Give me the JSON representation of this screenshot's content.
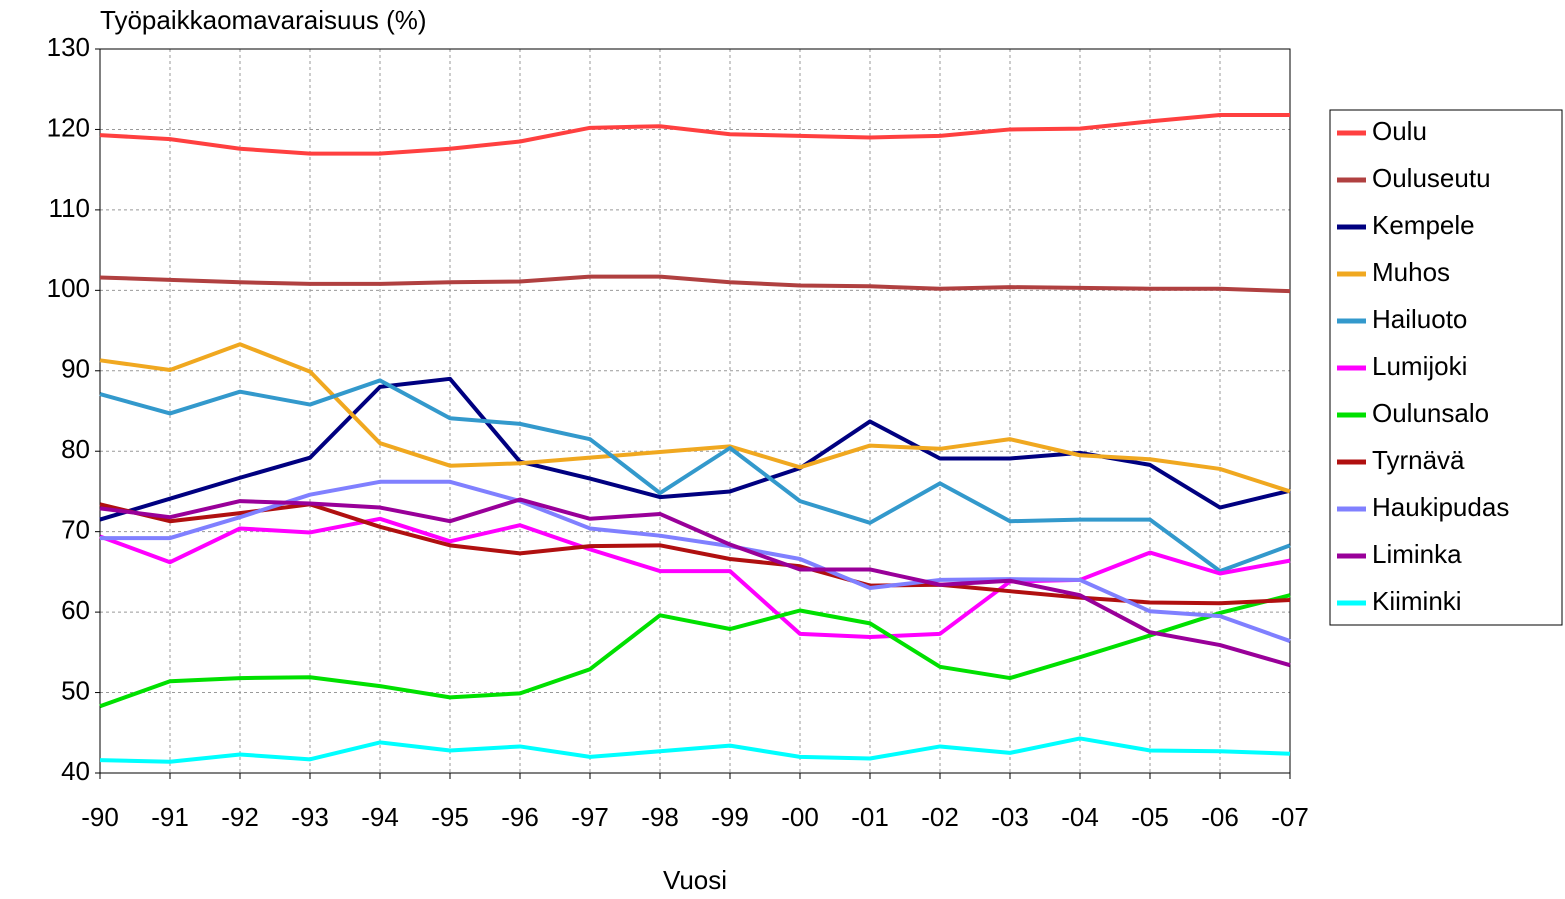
{
  "chart_data": {
    "type": "line",
    "y_axis_label": "Työpaikkaomavaraisuus (%)",
    "x_axis_label": "Vuosi",
    "categories": [
      "-90",
      "-91",
      "-92",
      "-93",
      "-94",
      "-95",
      "-96",
      "-97",
      "-98",
      "-99",
      "-00",
      "-01",
      "-02",
      "-03",
      "-04",
      "-05",
      "-06",
      "-07"
    ],
    "ylim": [
      40,
      130
    ],
    "yticks": [
      40,
      50,
      60,
      70,
      80,
      90,
      100,
      110,
      120,
      130
    ],
    "grid": true,
    "legend": "right",
    "series": [
      {
        "name": "Oulu",
        "color": "#ff4040",
        "values": [
          119.3,
          118.8,
          117.6,
          117.0,
          117.0,
          117.6,
          118.5,
          120.2,
          120.4,
          119.4,
          119.2,
          119.0,
          119.2,
          120.0,
          120.1,
          121.0,
          121.8,
          121.8
        ]
      },
      {
        "name": "Ouluseutu",
        "color": "#b04040",
        "values": [
          101.6,
          101.3,
          101.0,
          100.8,
          100.8,
          101.0,
          101.1,
          101.7,
          101.7,
          101.0,
          100.6,
          100.5,
          100.2,
          100.4,
          100.3,
          100.2,
          100.2,
          99.9
        ]
      },
      {
        "name": "Kempele",
        "color": "#000080",
        "values": [
          71.5,
          74.1,
          76.7,
          79.2,
          88.0,
          89.0,
          78.7,
          76.6,
          74.3,
          75.0,
          77.9,
          83.7,
          79.1,
          79.1,
          79.8,
          78.3,
          73.0,
          75.1
        ]
      },
      {
        "name": "Muhos",
        "color": "#f0a820",
        "values": [
          91.3,
          90.1,
          93.3,
          89.9,
          81.0,
          78.2,
          78.5,
          79.2,
          79.9,
          80.6,
          78.0,
          80.7,
          80.3,
          81.5,
          79.5,
          79.0,
          77.8,
          75.0
        ]
      },
      {
        "name": "Hailuoto",
        "color": "#3399cc",
        "values": [
          87.1,
          84.7,
          87.4,
          85.8,
          88.8,
          84.1,
          83.4,
          81.5,
          74.8,
          80.4,
          73.8,
          71.1,
          76.0,
          71.3,
          71.5,
          71.5,
          65.1,
          68.3
        ]
      },
      {
        "name": "Lumijoki",
        "color": "#ff00ff",
        "values": [
          69.4,
          66.2,
          70.4,
          69.9,
          71.6,
          68.8,
          70.8,
          67.8,
          65.1,
          65.1,
          57.3,
          56.9,
          57.3,
          63.8,
          64.0,
          67.4,
          64.8,
          66.4
        ]
      },
      {
        "name": "Oulunsalo",
        "color": "#00e000",
        "values": [
          48.3,
          51.4,
          51.8,
          51.9,
          50.8,
          49.4,
          49.9,
          52.9,
          59.6,
          57.9,
          60.2,
          58.6,
          53.2,
          51.8,
          54.4,
          57.1,
          59.9,
          62.1
        ]
      },
      {
        "name": "Tyrnävä",
        "color": "#b01010",
        "values": [
          73.4,
          71.3,
          72.3,
          73.4,
          70.6,
          68.3,
          67.3,
          68.2,
          68.3,
          66.6,
          65.7,
          63.3,
          63.4,
          62.6,
          61.8,
          61.2,
          61.1,
          61.5
        ]
      },
      {
        "name": "Haukipudas",
        "color": "#8080ff",
        "values": [
          69.2,
          69.2,
          71.8,
          74.6,
          76.2,
          76.2,
          73.8,
          70.4,
          69.5,
          68.2,
          66.6,
          63.0,
          64.0,
          64.1,
          64.0,
          60.1,
          59.5,
          56.4
        ]
      },
      {
        "name": "Liminka",
        "color": "#990099",
        "values": [
          72.9,
          71.8,
          73.8,
          73.5,
          73.0,
          71.3,
          74.0,
          71.6,
          72.2,
          68.4,
          65.3,
          65.3,
          63.4,
          63.9,
          62.1,
          57.5,
          55.9,
          53.4
        ]
      },
      {
        "name": "Kiiminki",
        "color": "#00ffff",
        "values": [
          41.6,
          41.4,
          42.3,
          41.7,
          43.8,
          42.8,
          43.3,
          42.0,
          42.7,
          43.4,
          42.0,
          41.8,
          43.3,
          42.5,
          44.3,
          42.8,
          42.7,
          42.4
        ]
      }
    ]
  }
}
